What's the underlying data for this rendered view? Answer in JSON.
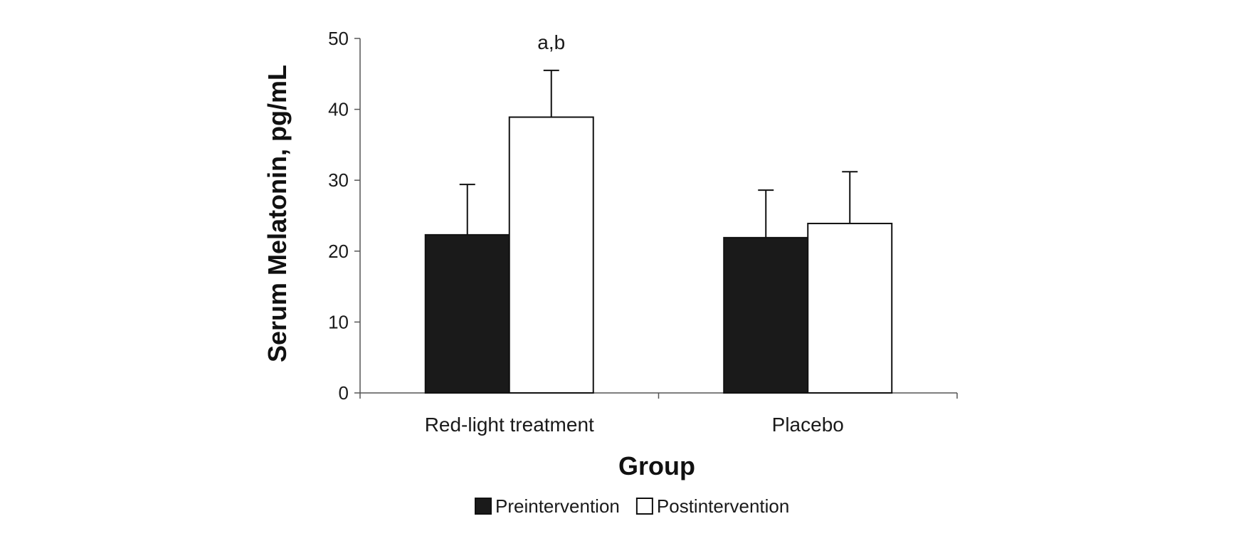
{
  "chart_data": {
    "type": "bar",
    "categories": [
      "Red-light treatment",
      "Placebo"
    ],
    "series": [
      {
        "name": "Preintervention",
        "values": [
          22.3,
          21.9
        ],
        "errors": [
          7.1,
          6.7
        ],
        "color": "#1a1a1a"
      },
      {
        "name": "Postintervention",
        "values": [
          38.9,
          23.9
        ],
        "errors": [
          6.6,
          7.3
        ],
        "color": "#ffffff"
      }
    ],
    "annotations": [
      {
        "category_index": 0,
        "series_index": 1,
        "text": "a,b"
      }
    ],
    "xlabel": "Group",
    "ylabel": "Serum Melatonin, pg/mL",
    "ylim": [
      0,
      50
    ],
    "yticks": [
      0,
      10,
      20,
      30,
      40,
      50
    ],
    "grid": false,
    "legend_position": "bottom"
  }
}
